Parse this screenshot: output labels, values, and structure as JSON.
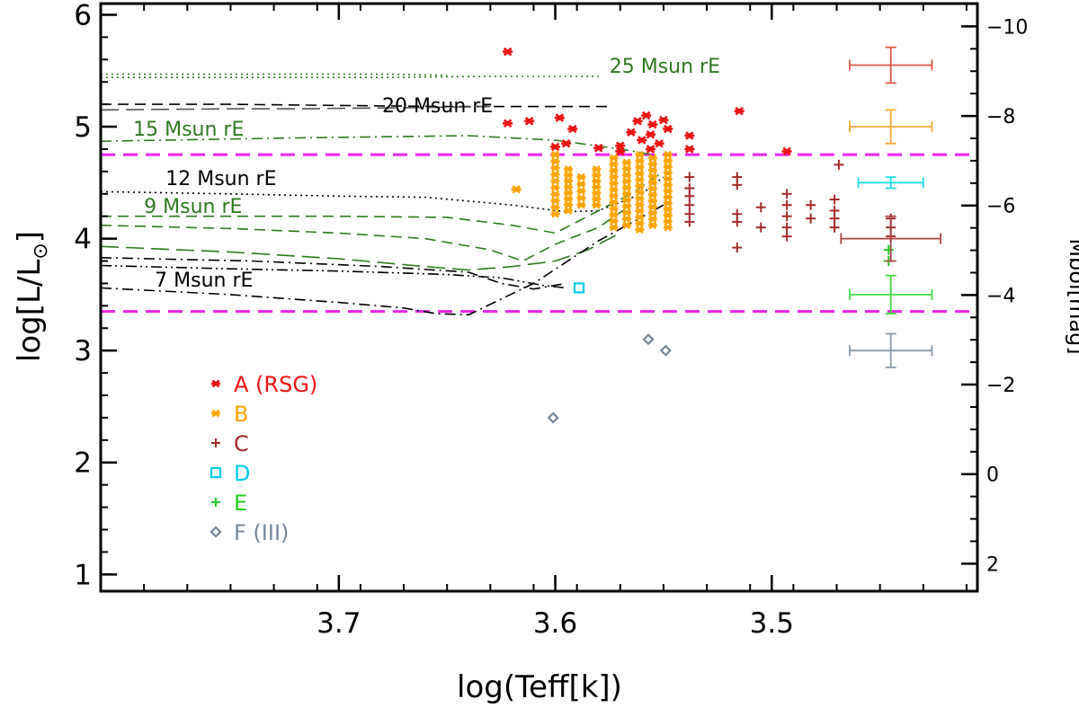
{
  "chart_data": {
    "type": "scatter",
    "title": "",
    "xlabel": "log(Teff[k])",
    "ylabel_main": "log[L/L",
    "ylabel_sub": "⊙",
    "ylabel_close": "]",
    "y2label": "Mbol[mag]",
    "xlim": [
      3.81,
      3.405
    ],
    "ylim": [
      0.85,
      6.1
    ],
    "x_ticks": [
      {
        "value": 3.7,
        "label": "3.7"
      },
      {
        "value": 3.6,
        "label": "3.6"
      },
      {
        "value": 3.5,
        "label": "3.5"
      }
    ],
    "y_ticks": [
      {
        "value": 1,
        "label": "1"
      },
      {
        "value": 2,
        "label": "2"
      },
      {
        "value": 3,
        "label": "3"
      },
      {
        "value": 4,
        "label": "4"
      },
      {
        "value": 5,
        "label": "5"
      },
      {
        "value": 6,
        "label": "6"
      }
    ],
    "mbol_ticks": [
      {
        "value": 2,
        "label": "2"
      },
      {
        "value": 0,
        "label": "0"
      },
      {
        "value": -2,
        "label": "−2"
      },
      {
        "value": -4,
        "label": "−4"
      },
      {
        "value": -6,
        "label": "−6"
      },
      {
        "value": -8,
        "label": "−8"
      },
      {
        "value": -10,
        "label": "−10"
      }
    ],
    "mbol_zero_logL": 1.896,
    "hlines": [
      {
        "y": 4.75,
        "color": "#ee22ee",
        "style": "dashed"
      },
      {
        "y": 3.35,
        "color": "#ee22ee",
        "style": "dashed"
      }
    ],
    "tracks": [
      {
        "name": "25 Msun rE",
        "color": "#2d7a1e",
        "style": "dotted",
        "points": [
          [
            3.81,
            5.44
          ],
          [
            3.75,
            5.44
          ],
          [
            3.68,
            5.44
          ],
          [
            3.63,
            5.45
          ],
          [
            3.58,
            5.45
          ]
        ]
      },
      {
        "name": "25 Msun rE b",
        "color": "#2d7a1e",
        "style": "dotted",
        "points": [
          [
            3.81,
            5.47
          ],
          [
            3.75,
            5.47
          ],
          [
            3.68,
            5.47
          ],
          [
            3.65,
            5.46
          ]
        ]
      },
      {
        "name": "20 Msun rE",
        "color": "#000000",
        "style": "dashed",
        "points": [
          [
            3.81,
            5.2
          ],
          [
            3.75,
            5.2
          ],
          [
            3.7,
            5.19
          ],
          [
            3.65,
            5.18
          ],
          [
            3.575,
            5.18
          ]
        ]
      },
      {
        "name": "20 Msun rE b",
        "color": "#555555",
        "style": "longdash",
        "points": [
          [
            3.81,
            5.15
          ],
          [
            3.75,
            5.16
          ],
          [
            3.72,
            5.16
          ],
          [
            3.67,
            5.17
          ],
          [
            3.63,
            5.18
          ]
        ]
      },
      {
        "name": "15 Msun rE",
        "color": "#2d7a1e",
        "style": "dashdot",
        "points": [
          [
            3.81,
            4.87
          ],
          [
            3.72,
            4.9
          ],
          [
            3.64,
            4.92
          ],
          [
            3.6,
            4.88
          ],
          [
            3.57,
            4.8
          ],
          [
            3.555,
            4.75
          ]
        ]
      },
      {
        "name": "12 Msun rE",
        "color": "#000000",
        "style": "dotted",
        "points": [
          [
            3.81,
            4.42
          ],
          [
            3.75,
            4.4
          ],
          [
            3.7,
            4.38
          ],
          [
            3.66,
            4.37
          ],
          [
            3.62,
            4.3
          ],
          [
            3.595,
            4.24
          ],
          [
            3.58,
            4.25
          ],
          [
            3.56,
            4.4
          ],
          [
            3.55,
            4.55
          ]
        ]
      },
      {
        "name": "9 Msun rE",
        "color": "#2d7a1e",
        "style": "dashed",
        "points": [
          [
            3.81,
            4.2
          ],
          [
            3.75,
            4.2
          ],
          [
            3.7,
            4.2
          ],
          [
            3.65,
            4.19
          ],
          [
            3.62,
            4.12
          ],
          [
            3.6,
            4.05
          ],
          [
            3.585,
            4.2
          ],
          [
            3.565,
            4.4
          ],
          [
            3.55,
            4.6
          ]
        ]
      },
      {
        "name": "9 Msun rE b",
        "color": "#2d7a1e",
        "style": "dashed",
        "points": [
          [
            3.81,
            4.12
          ],
          [
            3.75,
            4.09
          ],
          [
            3.7,
            4.05
          ],
          [
            3.66,
            4.0
          ],
          [
            3.63,
            3.9
          ],
          [
            3.615,
            3.8
          ],
          [
            3.6,
            3.95
          ],
          [
            3.58,
            4.1
          ],
          [
            3.565,
            4.3
          ]
        ]
      },
      {
        "name": "8 Msun",
        "color": "#2d7a1e",
        "style": "longdash",
        "points": [
          [
            3.81,
            3.93
          ],
          [
            3.75,
            3.88
          ],
          [
            3.7,
            3.82
          ],
          [
            3.66,
            3.75
          ],
          [
            3.64,
            3.72
          ],
          [
            3.62,
            3.75
          ],
          [
            3.6,
            3.8
          ],
          [
            3.585,
            3.9
          ],
          [
            3.57,
            4.05
          ]
        ]
      },
      {
        "name": "7 Msun a",
        "color": "#000000",
        "style": "dashdot",
        "points": [
          [
            3.81,
            3.83
          ],
          [
            3.74,
            3.8
          ],
          [
            3.68,
            3.75
          ],
          [
            3.64,
            3.7
          ],
          [
            3.625,
            3.6
          ],
          [
            3.61,
            3.55
          ],
          [
            3.595,
            3.6
          ]
        ]
      },
      {
        "name": "7 Msun b",
        "color": "#000000",
        "style": "dashdotdot",
        "points": [
          [
            3.81,
            3.76
          ],
          [
            3.75,
            3.73
          ],
          [
            3.7,
            3.71
          ],
          [
            3.65,
            3.68
          ],
          [
            3.625,
            3.65
          ],
          [
            3.605,
            3.58
          ],
          [
            3.595,
            3.56
          ]
        ]
      },
      {
        "name": "7 Msun rE",
        "color": "#000000",
        "style": "dashdot",
        "points": [
          [
            3.81,
            3.56
          ],
          [
            3.75,
            3.5
          ],
          [
            3.7,
            3.43
          ],
          [
            3.67,
            3.38
          ],
          [
            3.655,
            3.33
          ],
          [
            3.64,
            3.32
          ],
          [
            3.61,
            3.6
          ],
          [
            3.58,
            3.98
          ],
          [
            3.55,
            4.3
          ]
        ]
      }
    ],
    "curve_labels": [
      {
        "text": "25 Msun rE",
        "x": 3.575,
        "y": 5.48,
        "color": "#2d7a1e"
      },
      {
        "text": "20 Msun rE",
        "x": 3.68,
        "y": 5.13,
        "color": "#000000"
      },
      {
        "text": "15 Msun rE",
        "x": 3.795,
        "y": 4.92,
        "color": "#2d7a1e"
      },
      {
        "text": "12 Msun rE",
        "x": 3.78,
        "y": 4.48,
        "color": "#000000"
      },
      {
        "text": "9 Msun rE",
        "x": 3.79,
        "y": 4.23,
        "color": "#2d7a1e"
      },
      {
        "text": "7 Msun rE",
        "x": 3.785,
        "y": 3.57,
        "color": "#000000"
      }
    ],
    "series": [
      {
        "name": "A",
        "legend_label": "A (RSG)",
        "color": "#ee1111",
        "marker": "asterisk",
        "points": [
          [
            3.622,
            5.67
          ],
          [
            3.622,
            5.03
          ],
          [
            3.612,
            5.05
          ],
          [
            3.598,
            5.08
          ],
          [
            3.592,
            4.98
          ],
          [
            3.6,
            4.82
          ],
          [
            3.595,
            4.85
          ],
          [
            3.58,
            4.81
          ],
          [
            3.57,
            4.83
          ],
          [
            3.565,
            4.95
          ],
          [
            3.562,
            5.05
          ],
          [
            3.558,
            5.1
          ],
          [
            3.555,
            5.02
          ],
          [
            3.55,
            5.06
          ],
          [
            3.556,
            4.93
          ],
          [
            3.548,
            4.98
          ],
          [
            3.56,
            4.88
          ],
          [
            3.552,
            4.85
          ],
          [
            3.538,
            4.92
          ],
          [
            3.538,
            4.8
          ],
          [
            3.515,
            5.14
          ],
          [
            3.493,
            4.78
          ],
          [
            3.57,
            4.78
          ],
          [
            3.556,
            4.8
          ]
        ]
      },
      {
        "name": "B",
        "legend_label": "B",
        "color": "#ffa500",
        "marker": "asterisk",
        "clusters": [
          {
            "x": 3.6,
            "ylo": 4.22,
            "yhi": 4.75,
            "cols": 1
          },
          {
            "x": 3.594,
            "ylo": 4.25,
            "yhi": 4.62,
            "cols": 1
          },
          {
            "x": 3.588,
            "ylo": 4.3,
            "yhi": 4.55,
            "cols": 1
          },
          {
            "x": 3.581,
            "ylo": 4.3,
            "yhi": 4.62,
            "cols": 1
          },
          {
            "x": 3.573,
            "ylo": 4.1,
            "yhi": 4.72,
            "cols": 1
          },
          {
            "x": 3.567,
            "ylo": 4.12,
            "yhi": 4.68,
            "cols": 1
          },
          {
            "x": 3.561,
            "ylo": 4.08,
            "yhi": 4.75,
            "cols": 1
          },
          {
            "x": 3.555,
            "ylo": 4.12,
            "yhi": 4.72,
            "cols": 1
          },
          {
            "x": 3.548,
            "ylo": 4.1,
            "yhi": 4.75,
            "cols": 1
          }
        ],
        "points": [
          [
            3.618,
            4.44
          ]
        ]
      },
      {
        "name": "C",
        "legend_label": "C",
        "color": "#a52a2a",
        "marker": "plus",
        "points": [
          [
            3.538,
            4.55
          ],
          [
            3.538,
            4.45
          ],
          [
            3.538,
            4.38
          ],
          [
            3.538,
            4.3
          ],
          [
            3.538,
            4.22
          ],
          [
            3.538,
            4.15
          ],
          [
            3.516,
            4.55
          ],
          [
            3.516,
            4.48
          ],
          [
            3.516,
            4.22
          ],
          [
            3.516,
            4.15
          ],
          [
            3.516,
            3.92
          ],
          [
            3.505,
            4.28
          ],
          [
            3.505,
            4.1
          ],
          [
            3.493,
            4.4
          ],
          [
            3.493,
            4.3
          ],
          [
            3.493,
            4.2
          ],
          [
            3.493,
            4.1
          ],
          [
            3.493,
            4.02
          ],
          [
            3.482,
            4.3
          ],
          [
            3.482,
            4.18
          ],
          [
            3.471,
            4.35
          ],
          [
            3.471,
            4.25
          ],
          [
            3.471,
            4.18
          ],
          [
            3.471,
            4.1
          ],
          [
            3.469,
            4.66
          ],
          [
            3.445,
            4.18
          ],
          [
            3.445,
            4.1
          ],
          [
            3.445,
            4.02
          ]
        ]
      },
      {
        "name": "D",
        "legend_label": "D",
        "color": "#00ccee",
        "marker": "square",
        "points": [
          [
            3.589,
            3.56
          ]
        ]
      },
      {
        "name": "E",
        "legend_label": "E",
        "color": "#22cc22",
        "marker": "plus",
        "points": [
          [
            3.446,
            3.9
          ],
          [
            3.446,
            3.8
          ]
        ]
      },
      {
        "name": "F",
        "legend_label": "F (III)",
        "color": "#778899",
        "marker": "diamond",
        "points": [
          [
            3.601,
            2.4
          ],
          [
            3.557,
            3.1
          ],
          [
            3.549,
            3.0
          ]
        ]
      }
    ],
    "error_bars": [
      {
        "x": 3.445,
        "y": 5.55,
        "xerr": 0.019,
        "yerr": 0.16,
        "color": "#dd5544"
      },
      {
        "x": 3.445,
        "y": 5.0,
        "xerr": 0.019,
        "yerr": 0.15,
        "color": "#ffaa33"
      },
      {
        "x": 3.445,
        "y": 4.5,
        "xerr": 0.015,
        "yerr": 0.05,
        "color": "#22ddee"
      },
      {
        "x": 3.445,
        "y": 4.0,
        "xerr": 0.023,
        "yerr": 0.2,
        "color": "#aa4444"
      },
      {
        "x": 3.445,
        "y": 3.5,
        "xerr": 0.019,
        "yerr": 0.17,
        "color": "#44dd44"
      },
      {
        "x": 3.445,
        "y": 3.0,
        "xerr": 0.019,
        "yerr": 0.15,
        "color": "#8899aa"
      }
    ],
    "legend": {
      "position": "lower-left"
    }
  }
}
